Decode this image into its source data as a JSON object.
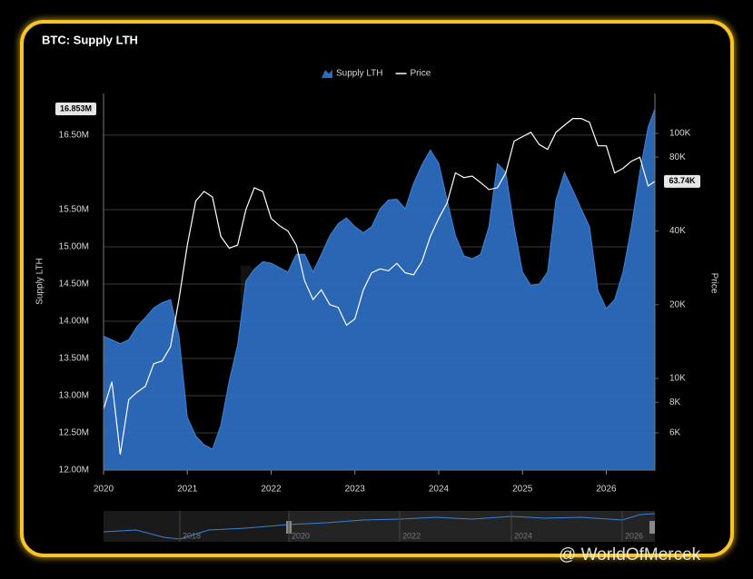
{
  "chart_data": {
    "type": "combo",
    "title": "BTC: Supply LTH",
    "y_label": "Supply LTH",
    "y2_label": "Price",
    "watermark": "NODELY",
    "credit": "@ WorldOfMercek",
    "navigator_labels": [
      "2018",
      "2020",
      "2022",
      "2024",
      "2026"
    ],
    "x": [
      2020.0,
      2020.1,
      2020.2,
      2020.3,
      2020.4,
      2020.5,
      2020.6,
      2020.7,
      2020.8,
      2020.9,
      2021.0,
      2021.1,
      2021.2,
      2021.3,
      2021.4,
      2021.5,
      2021.6,
      2021.7,
      2021.8,
      2021.9,
      2022.0,
      2022.1,
      2022.2,
      2022.3,
      2022.4,
      2022.5,
      2022.6,
      2022.7,
      2022.8,
      2022.9,
      2023.0,
      2023.1,
      2023.2,
      2023.3,
      2023.4,
      2023.5,
      2023.6,
      2023.7,
      2023.8,
      2023.9,
      2024.0,
      2024.1,
      2024.2,
      2024.3,
      2024.4,
      2024.5,
      2024.6,
      2024.7,
      2024.8,
      2024.9,
      2025.0,
      2025.1,
      2025.2,
      2025.3,
      2025.4,
      2025.5,
      2025.6,
      2025.7,
      2025.8,
      2025.9,
      2026.0,
      2026.1,
      2026.2,
      2026.3,
      2026.4,
      2026.5,
      2026.58
    ],
    "xlim": [
      2020,
      2026.58
    ],
    "xticks": [
      2020,
      2021,
      2022,
      2023,
      2024,
      2025,
      2026
    ],
    "ylim": [
      12,
      17.06
    ],
    "yticks": [
      {
        "value": 12,
        "label": "12.00M"
      },
      {
        "value": 12.5,
        "label": "12.50M"
      },
      {
        "value": 13,
        "label": "13.00M"
      },
      {
        "value": 13.5,
        "label": "13.50M"
      },
      {
        "value": 14,
        "label": "14.00M"
      },
      {
        "value": 14.5,
        "label": "14.50M"
      },
      {
        "value": 15,
        "label": "15.00M"
      },
      {
        "value": 15.5,
        "label": "15.50M"
      },
      {
        "value": 16.5,
        "label": "16.50M"
      }
    ],
    "y2lim": [
      4230,
      145500
    ],
    "y2ticks": [
      {
        "value": 6000,
        "label": "6K"
      },
      {
        "value": 8000,
        "label": "8K"
      },
      {
        "value": 10000,
        "label": "10K"
      },
      {
        "value": 20000,
        "label": "20K"
      },
      {
        "value": 40000,
        "label": "40K"
      },
      {
        "value": 80000,
        "label": "80K"
      },
      {
        "value": 100000,
        "label": "100K"
      }
    ],
    "y2log": true,
    "grid": true,
    "legend": "top",
    "series": [
      {
        "name": "Supply LTH",
        "type": "area",
        "color": "#2c6bbd",
        "end_label": "16.853M",
        "values": [
          13.8,
          13.75,
          13.7,
          13.75,
          13.93,
          14.05,
          14.18,
          14.25,
          14.29,
          13.8,
          12.71,
          12.46,
          12.34,
          12.28,
          12.6,
          13.2,
          13.68,
          14.54,
          14.7,
          14.8,
          14.78,
          14.72,
          14.66,
          14.9,
          14.9,
          14.66,
          14.9,
          15.15,
          15.31,
          15.39,
          15.27,
          15.19,
          15.27,
          15.51,
          15.63,
          15.64,
          15.51,
          15.85,
          16.1,
          16.3,
          16.12,
          15.63,
          15.15,
          14.88,
          14.84,
          14.9,
          15.27,
          16.12,
          16.0,
          15.27,
          14.66,
          14.48,
          14.5,
          14.66,
          15.63,
          16.0,
          15.76,
          15.51,
          15.27,
          14.41,
          14.17,
          14.29,
          14.66,
          15.27,
          16.0,
          16.61,
          16.853
        ]
      },
      {
        "name": "Price",
        "type": "line",
        "axis": "y2",
        "color": "#ffffff",
        "end_label": "63.74K",
        "values": [
          7500,
          9700,
          4900,
          8200,
          8800,
          9300,
          11500,
          11800,
          13500,
          21000,
          35000,
          53000,
          58000,
          55000,
          38000,
          34000,
          35000,
          49000,
          60000,
          58000,
          45000,
          42000,
          40000,
          35000,
          25000,
          21000,
          23000,
          20000,
          19500,
          16500,
          17500,
          23000,
          27000,
          28000,
          27500,
          29500,
          27000,
          26500,
          30000,
          38000,
          45000,
          52000,
          69000,
          66000,
          67000,
          63000,
          59000,
          60000,
          69000,
          93000,
          97000,
          101000,
          90000,
          86000,
          101000,
          108000,
          115000,
          115000,
          111000,
          89000,
          89000,
          69000,
          72000,
          77000,
          80000,
          61000,
          63740
        ]
      }
    ]
  }
}
